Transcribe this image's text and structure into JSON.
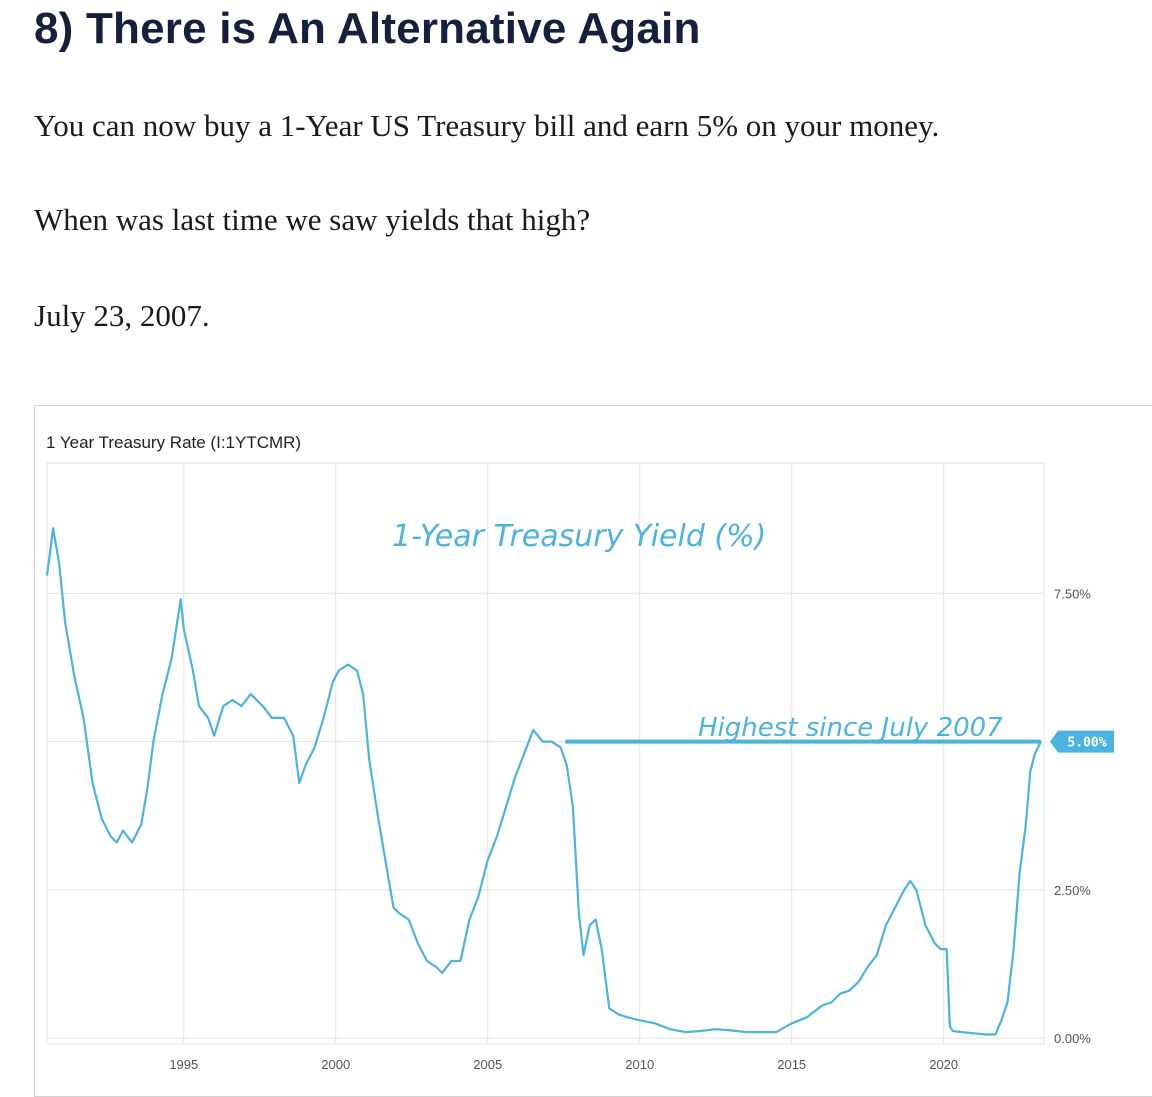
{
  "article": {
    "heading": "8) There is An Alternative Again",
    "paragraphs": [
      "You can now buy a 1-Year US Treasury bill and earn 5% on your money.",
      "When was last time we saw yields that high?",
      "July 23, 2007."
    ]
  },
  "colors": {
    "line": "#4bb3de",
    "heading": "#14213d",
    "grid": "#e3e3e3"
  },
  "chart_data": {
    "type": "line",
    "title": "1 Year Treasury Rate (I:1YTCMR)",
    "annotation_title": "1-Year Treasury Yield (%)",
    "annotation_note": "Highest since July 2007",
    "latest_value_label": "5.00%",
    "xlabel": "",
    "ylabel": "",
    "xlim": [
      1990.5,
      2023.3
    ],
    "ylim": [
      -0.1,
      9.7
    ],
    "x_ticks": [
      1995,
      2000,
      2005,
      2010,
      2015,
      2020
    ],
    "x_tick_labels": [
      "1995",
      "2000",
      "2005",
      "2010",
      "2015",
      "2020"
    ],
    "y_ticks": [
      0,
      2.5,
      5,
      7.5
    ],
    "y_tick_labels": [
      "0.00%",
      "2.50%",
      "5.00%",
      "7.50%"
    ],
    "highlight_level": {
      "y": 5.0,
      "x_start": 2007.55,
      "x_end": 2023.2
    },
    "grid": true,
    "series": [
      {
        "name": "",
        "x": [
          1990.5,
          1990.7,
          1990.9,
          1991.1,
          1991.4,
          1991.7,
          1992.0,
          1992.3,
          1992.6,
          1992.8,
          1993.0,
          1993.3,
          1993.6,
          1993.8,
          1994.0,
          1994.3,
          1994.6,
          1994.9,
          1995.0,
          1995.3,
          1995.5,
          1995.8,
          1996.0,
          1996.3,
          1996.6,
          1996.9,
          1997.2,
          1997.6,
          1997.9,
          1998.3,
          1998.6,
          1998.8,
          1999.0,
          1999.3,
          1999.6,
          1999.9,
          2000.1,
          2000.4,
          2000.7,
          2000.9,
          2001.1,
          2001.4,
          2001.7,
          2001.9,
          2002.1,
          2002.4,
          2002.7,
          2003.0,
          2003.3,
          2003.5,
          2003.8,
          2004.1,
          2004.4,
          2004.7,
          2005.0,
          2005.3,
          2005.6,
          2005.9,
          2006.2,
          2006.5,
          2006.8,
          2007.1,
          2007.4,
          2007.6,
          2007.8,
          2008.0,
          2008.15,
          2008.35,
          2008.55,
          2008.75,
          2009.0,
          2009.3,
          2009.6,
          2010.0,
          2010.5,
          2011.0,
          2011.5,
          2012.0,
          2012.5,
          2013.0,
          2013.5,
          2014.0,
          2014.5,
          2015.0,
          2015.5,
          2016.0,
          2016.3,
          2016.6,
          2016.9,
          2017.2,
          2017.5,
          2017.8,
          2018.1,
          2018.4,
          2018.7,
          2018.9,
          2019.1,
          2019.4,
          2019.7,
          2019.9,
          2020.1,
          2020.2,
          2020.3,
          2020.6,
          2021.0,
          2021.4,
          2021.7,
          2021.9,
          2022.1,
          2022.3,
          2022.5,
          2022.7,
          2022.85,
          2023.0,
          2023.2
        ],
        "values": [
          7.8,
          8.6,
          8.0,
          7.0,
          6.1,
          5.4,
          4.3,
          3.7,
          3.4,
          3.3,
          3.5,
          3.3,
          3.6,
          4.2,
          5.0,
          5.8,
          6.4,
          7.4,
          6.9,
          6.2,
          5.6,
          5.4,
          5.1,
          5.6,
          5.7,
          5.6,
          5.8,
          5.6,
          5.4,
          5.4,
          5.1,
          4.3,
          4.6,
          4.9,
          5.4,
          6.0,
          6.2,
          6.3,
          6.2,
          5.8,
          4.7,
          3.7,
          2.8,
          2.2,
          2.1,
          2.0,
          1.6,
          1.3,
          1.2,
          1.1,
          1.3,
          1.3,
          2.0,
          2.4,
          3.0,
          3.4,
          3.9,
          4.4,
          4.8,
          5.2,
          5.0,
          5.0,
          4.9,
          4.6,
          3.9,
          2.1,
          1.4,
          1.9,
          2.0,
          1.5,
          0.5,
          0.4,
          0.35,
          0.3,
          0.25,
          0.15,
          0.1,
          0.12,
          0.15,
          0.13,
          0.1,
          0.1,
          0.1,
          0.25,
          0.35,
          0.55,
          0.6,
          0.75,
          0.8,
          0.95,
          1.2,
          1.4,
          1.9,
          2.2,
          2.5,
          2.65,
          2.5,
          1.9,
          1.6,
          1.5,
          1.5,
          0.2,
          0.12,
          0.1,
          0.08,
          0.06,
          0.06,
          0.3,
          0.6,
          1.5,
          2.8,
          3.6,
          4.5,
          4.8,
          5.0
        ]
      }
    ]
  }
}
